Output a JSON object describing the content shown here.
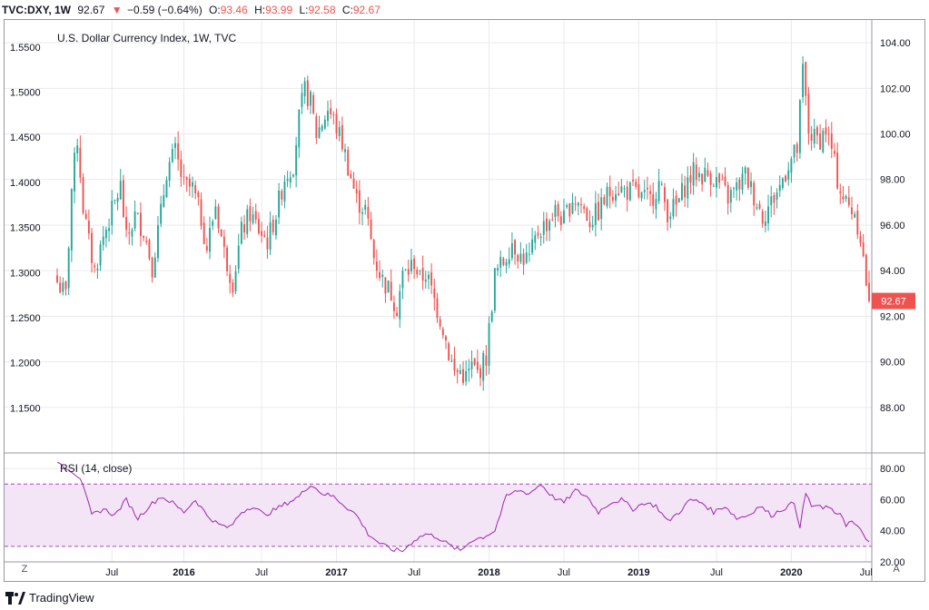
{
  "header": {
    "symbol": "TVC:DXY, 1W",
    "last": "92.67",
    "arrow": "▼",
    "change": "−0.59 (−0.64%)",
    "open_label": "O:",
    "open": "93.46",
    "high_label": "H:",
    "high": "93.99",
    "low_label": "L:",
    "low": "92.58",
    "close_label": "C:",
    "close": "92.67"
  },
  "colors": {
    "up": "#26a69a",
    "down": "#ef5350",
    "rsi_line": "#9c27b0",
    "rsi_band": "#f3e5f5",
    "grid": "#e8eaee"
  },
  "footer": {
    "brand": "TradingView",
    "zoom_btn": "Z",
    "auto_btn": "A"
  },
  "chart_data": [
    {
      "type": "candlestick",
      "title": "U.S. Dollar Currency Index, 1W, TVC",
      "last_price_label": "92.67",
      "left_axis": {
        "ticks": [
          "1.5500",
          "1.5000",
          "1.4500",
          "1.4000",
          "1.3500",
          "1.3000",
          "1.2500",
          "1.2000",
          "1.1500"
        ],
        "range": [
          1.1,
          1.58
        ]
      },
      "right_axis": {
        "ticks": [
          "104.00",
          "102.00",
          "100.00",
          "98.00",
          "96.00",
          "94.00",
          "92.00",
          "90.00",
          "88.00"
        ],
        "range": [
          86.0,
          105.0
        ]
      },
      "x_ticks": [
        "Jul",
        "2016",
        "Jul",
        "2017",
        "Jul",
        "2018",
        "Jul",
        "2019",
        "Jul",
        "2020",
        "Jul"
      ],
      "anchors": [
        [
          0,
          93.5
        ],
        [
          3,
          92.9
        ],
        [
          5,
          97.6
        ],
        [
          7,
          99.8
        ],
        [
          9,
          96.8
        ],
        [
          11,
          95.2
        ],
        [
          13,
          94.0
        ],
        [
          16,
          95.5
        ],
        [
          19,
          96.6
        ],
        [
          22,
          97.7
        ],
        [
          24,
          95.3
        ],
        [
          27,
          96.4
        ],
        [
          30,
          95.8
        ],
        [
          33,
          94.2
        ],
        [
          36,
          96.5
        ],
        [
          38,
          98.4
        ],
        [
          41,
          99.2
        ],
        [
          44,
          97.7
        ],
        [
          47,
          97.6
        ],
        [
          50,
          96.3
        ],
        [
          52,
          95.0
        ],
        [
          55,
          96.9
        ],
        [
          58,
          94.8
        ],
        [
          61,
          93.5
        ],
        [
          64,
          95.7
        ],
        [
          67,
          96.5
        ],
        [
          70,
          95.8
        ],
        [
          73,
          95.3
        ],
        [
          76,
          96.5
        ],
        [
          79,
          98.1
        ],
        [
          82,
          98.7
        ],
        [
          84,
          100.7
        ],
        [
          86,
          101.9
        ],
        [
          88,
          101.4
        ],
        [
          90,
          100.0
        ],
        [
          92,
          100.5
        ],
        [
          94,
          101.1
        ],
        [
          96,
          100.6
        ],
        [
          99,
          99.6
        ],
        [
          101,
          98.6
        ],
        [
          104,
          97.1
        ],
        [
          107,
          96.7
        ],
        [
          110,
          94.6
        ],
        [
          113,
          93.6
        ],
        [
          116,
          93.0
        ],
        [
          118,
          92.4
        ],
        [
          120,
          93.8
        ],
        [
          122,
          94.0
        ],
        [
          124,
          94.4
        ],
        [
          126,
          93.6
        ],
        [
          128,
          93.9
        ],
        [
          131,
          92.7
        ],
        [
          134,
          91.5
        ],
        [
          136,
          90.4
        ],
        [
          138,
          89.5
        ],
        [
          140,
          89.6
        ],
        [
          142,
          89.3
        ],
        [
          144,
          89.8
        ],
        [
          146,
          89.5
        ],
        [
          149,
          90.2
        ],
        [
          152,
          93.8
        ],
        [
          155,
          94.4
        ],
        [
          158,
          95.3
        ],
        [
          161,
          94.6
        ],
        [
          164,
          94.5
        ],
        [
          167,
          95.7
        ],
        [
          170,
          96.1
        ],
        [
          173,
          96.6
        ],
        [
          176,
          96.2
        ],
        [
          179,
          97.2
        ],
        [
          182,
          96.9
        ],
        [
          185,
          96.2
        ],
        [
          188,
          96.6
        ],
        [
          191,
          97.3
        ],
        [
          194,
          97.7
        ],
        [
          197,
          97.5
        ],
        [
          200,
          97.5
        ],
        [
          203,
          97.2
        ],
        [
          206,
          97.1
        ],
        [
          209,
          97.8
        ],
        [
          212,
          96.6
        ],
        [
          215,
          96.8
        ],
        [
          218,
          97.7
        ],
        [
          221,
          98.3
        ],
        [
          224,
          98.2
        ],
        [
          227,
          98.2
        ],
        [
          230,
          97.8
        ],
        [
          233,
          97.2
        ],
        [
          236,
          97.6
        ],
        [
          239,
          98.2
        ],
        [
          242,
          97.3
        ],
        [
          245,
          96.4
        ],
        [
          248,
          97.0
        ],
        [
          251,
          97.7
        ],
        [
          254,
          98.7
        ],
        [
          257,
          99.3
        ],
        [
          259,
          102.8
        ],
        [
          261,
          100.1
        ],
        [
          263,
          99.8
        ],
        [
          265,
          99.8
        ],
        [
          267,
          100.2
        ],
        [
          269,
          99.3
        ],
        [
          271,
          98.0
        ],
        [
          273,
          97.2
        ],
        [
          275,
          96.8
        ],
        [
          277,
          96.6
        ],
        [
          279,
          95.5
        ],
        [
          281,
          93.5
        ],
        [
          282,
          92.67
        ]
      ]
    },
    {
      "type": "line",
      "title": "RSI (14, close)",
      "axis": {
        "ticks": [
          "80.00",
          "60.00",
          "40.00",
          "20.00"
        ],
        "range": [
          20,
          90
        ]
      },
      "band": [
        30,
        70
      ],
      "anchors": [
        [
          0,
          84
        ],
        [
          4,
          80
        ],
        [
          8,
          74
        ],
        [
          12,
          50
        ],
        [
          16,
          54
        ],
        [
          20,
          50
        ],
        [
          24,
          60
        ],
        [
          28,
          48
        ],
        [
          32,
          56
        ],
        [
          36,
          62
        ],
        [
          40,
          58
        ],
        [
          44,
          52
        ],
        [
          48,
          60
        ],
        [
          52,
          50
        ],
        [
          56,
          44
        ],
        [
          60,
          42
        ],
        [
          64,
          52
        ],
        [
          68,
          56
        ],
        [
          72,
          50
        ],
        [
          76,
          54
        ],
        [
          80,
          58
        ],
        [
          84,
          62
        ],
        [
          88,
          70
        ],
        [
          92,
          64
        ],
        [
          96,
          62
        ],
        [
          100,
          56
        ],
        [
          104,
          50
        ],
        [
          108,
          38
        ],
        [
          112,
          32
        ],
        [
          116,
          28
        ],
        [
          120,
          27
        ],
        [
          124,
          34
        ],
        [
          128,
          38
        ],
        [
          132,
          36
        ],
        [
          136,
          31
        ],
        [
          140,
          27
        ],
        [
          144,
          34
        ],
        [
          148,
          36
        ],
        [
          152,
          40
        ],
        [
          156,
          62
        ],
        [
          160,
          66
        ],
        [
          164,
          64
        ],
        [
          168,
          70
        ],
        [
          172,
          62
        ],
        [
          176,
          58
        ],
        [
          180,
          66
        ],
        [
          184,
          62
        ],
        [
          188,
          52
        ],
        [
          192,
          58
        ],
        [
          196,
          60
        ],
        [
          200,
          54
        ],
        [
          204,
          58
        ],
        [
          208,
          56
        ],
        [
          212,
          46
        ],
        [
          216,
          52
        ],
        [
          220,
          60
        ],
        [
          224,
          58
        ],
        [
          228,
          52
        ],
        [
          232,
          56
        ],
        [
          236,
          48
        ],
        [
          240,
          50
        ],
        [
          244,
          56
        ],
        [
          248,
          50
        ],
        [
          252,
          54
        ],
        [
          256,
          58
        ],
        [
          258,
          43
        ],
        [
          260,
          64
        ],
        [
          262,
          56
        ],
        [
          264,
          56
        ],
        [
          266,
          54
        ],
        [
          268,
          56
        ],
        [
          270,
          50
        ],
        [
          272,
          52
        ],
        [
          274,
          44
        ],
        [
          276,
          46
        ],
        [
          278,
          42
        ],
        [
          280,
          38
        ],
        [
          282,
          33
        ]
      ]
    }
  ]
}
